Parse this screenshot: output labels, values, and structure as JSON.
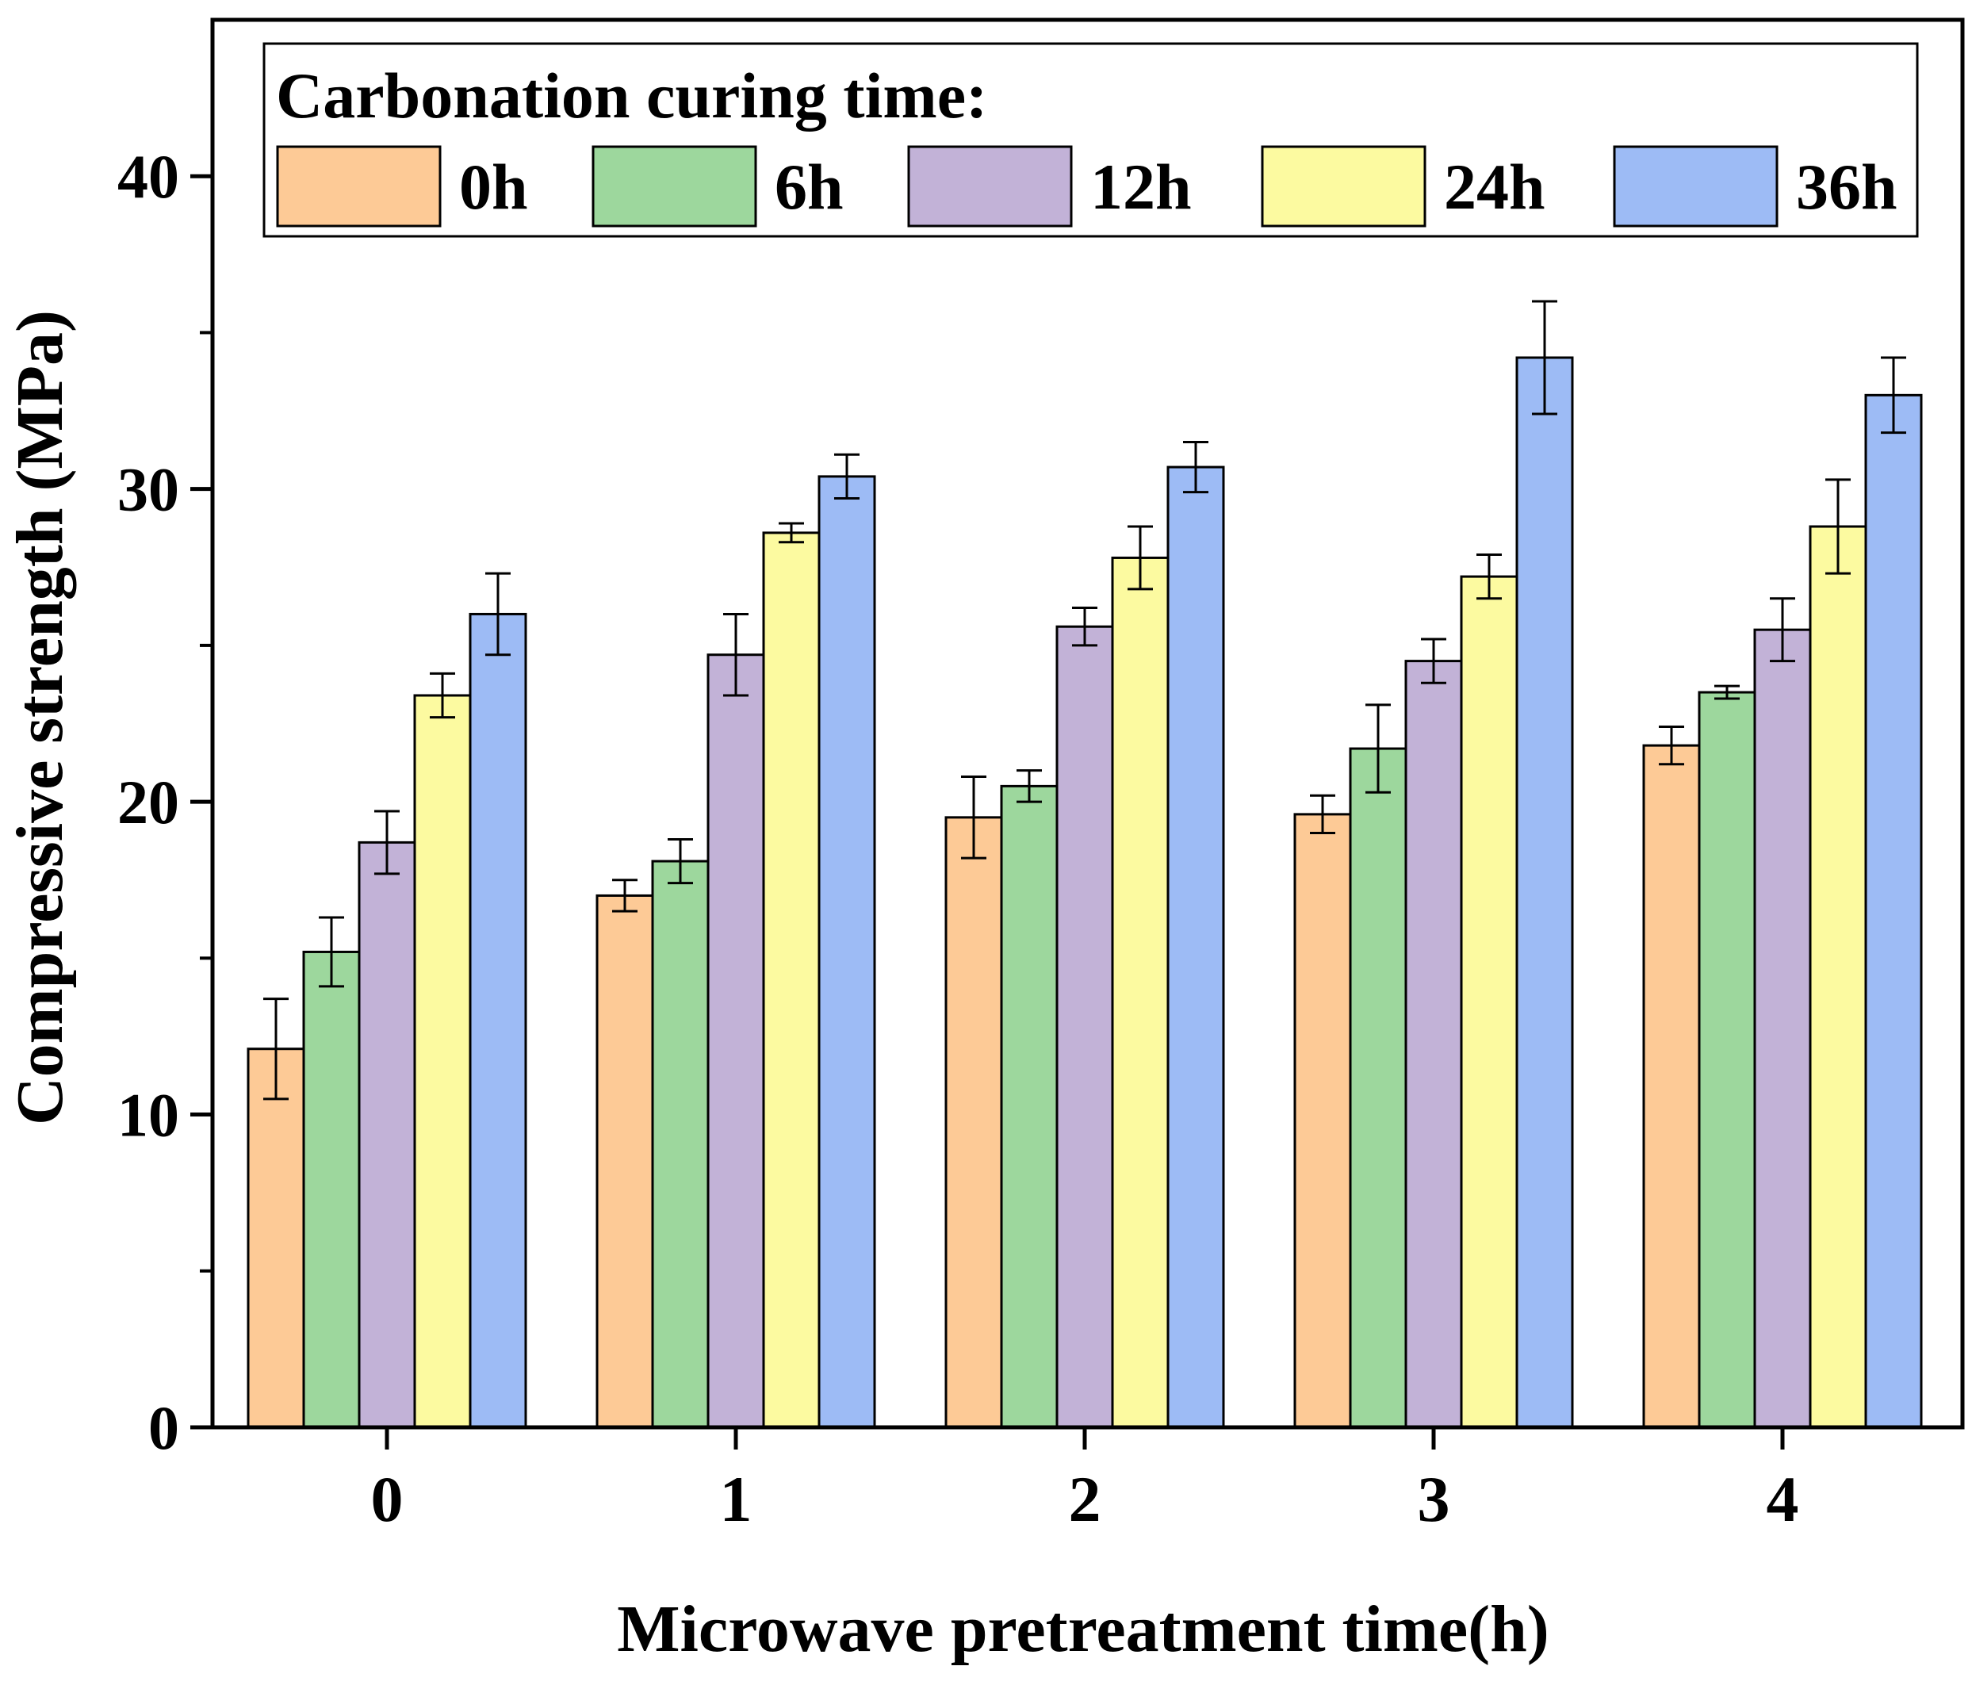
{
  "chart_data": {
    "type": "bar",
    "xlabel": "Microwave pretreatment time(h)",
    "ylabel": "Compressive strength (MPa)",
    "categories": [
      "0",
      "1",
      "2",
      "3",
      "4"
    ],
    "ylim": [
      0,
      45
    ],
    "y_ticks": [
      "0",
      "10",
      "20",
      "30",
      "40"
    ],
    "y_tick_values": [
      0,
      10,
      20,
      30,
      40
    ],
    "y_minor_ticks": [
      5,
      15,
      25,
      35
    ],
    "grid": false,
    "legend": {
      "title": "Carbonation curing time:",
      "placement": "top"
    },
    "series": [
      {
        "name": "0h",
        "color": "#FDCA96",
        "values": [
          12.1,
          17.0,
          19.5,
          19.6,
          21.8
        ],
        "errors": [
          1.6,
          0.5,
          1.3,
          0.6,
          0.6
        ]
      },
      {
        "name": "6h",
        "color": "#9DD79D",
        "values": [
          15.2,
          18.1,
          20.5,
          21.7,
          23.5
        ],
        "errors": [
          1.1,
          0.7,
          0.5,
          1.4,
          0.2
        ]
      },
      {
        "name": "12h",
        "color": "#C2B2D7",
        "values": [
          18.7,
          24.7,
          25.6,
          24.5,
          25.5
        ],
        "errors": [
          1.0,
          1.3,
          0.6,
          0.7,
          1.0
        ]
      },
      {
        "name": "24h",
        "color": "#FCFAA0",
        "values": [
          23.4,
          28.6,
          27.8,
          27.2,
          28.8
        ],
        "errors": [
          0.7,
          0.3,
          1.0,
          0.7,
          1.5
        ]
      },
      {
        "name": "36h",
        "color": "#9DBBF5",
        "values": [
          26.0,
          30.4,
          30.7,
          34.2,
          33.0
        ],
        "errors": [
          1.3,
          0.7,
          0.8,
          1.8,
          1.2
        ]
      }
    ]
  }
}
